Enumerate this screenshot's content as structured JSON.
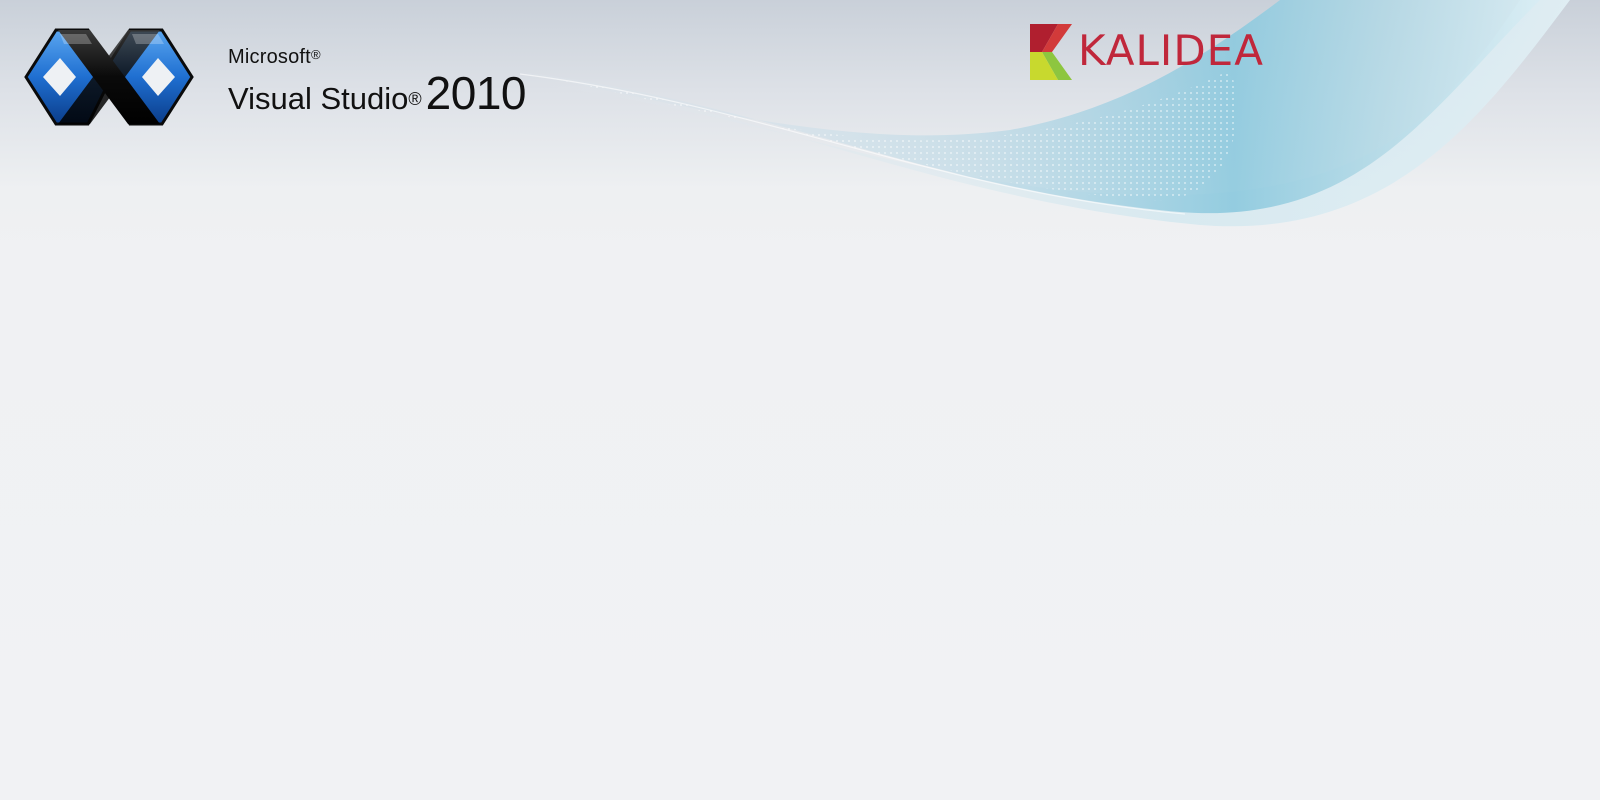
{
  "slide": {
    "vs_brand": {
      "company": "Microsoft",
      "product": "Visual Studio",
      "year": "2010",
      "registered_mark": "®",
      "logo_icon": "visual-studio-infinity-logo"
    },
    "partner_brand": {
      "name": "KALIDEA",
      "logo_icon": "kalidea-k-logo"
    },
    "colors": {
      "background": "#f0f1f3",
      "swoosh_accent": "#9fd0e3",
      "kalidea_red": "#c0273b",
      "vs_blue": "#1f6fd1"
    }
  }
}
